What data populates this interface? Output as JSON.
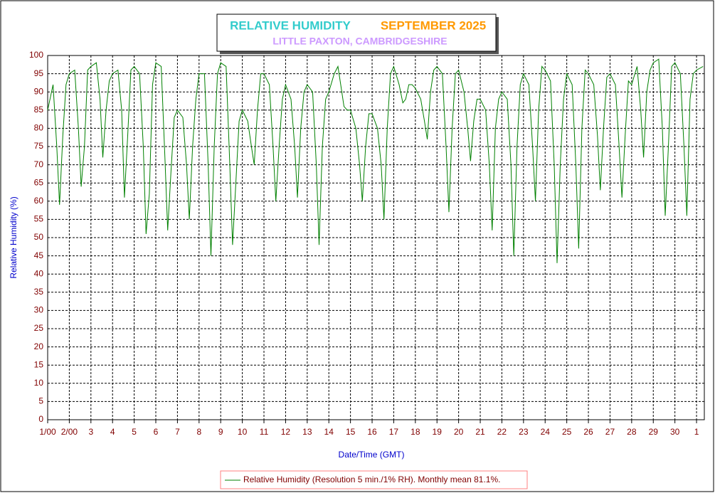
{
  "chart_data": {
    "type": "line",
    "title": "RELATIVE HUMIDITY",
    "title_period": "SEPTEMBER 2025",
    "subtitle": "LITTLE PAXTON, CAMBRIDGESHIRE",
    "x_label": "Date/Time (GMT)",
    "y_label": "Relative Humidity (%)",
    "x": [
      0,
      0.25,
      0.42,
      0.55,
      0.7,
      0.85,
      1,
      1.25,
      1.42,
      1.55,
      1.7,
      1.85,
      2,
      2.25,
      2.42,
      2.55,
      2.7,
      2.85,
      3,
      3.25,
      3.42,
      3.55,
      3.7,
      3.85,
      4,
      4.25,
      4.42,
      4.55,
      4.7,
      4.85,
      5,
      5.25,
      5.42,
      5.55,
      5.7,
      5.85,
      6,
      6.25,
      6.42,
      6.55,
      6.7,
      6.85,
      7,
      7.25,
      7.42,
      7.55,
      7.7,
      7.85,
      8,
      8.25,
      8.42,
      8.55,
      8.7,
      8.85,
      9,
      9.25,
      9.42,
      9.55,
      9.7,
      9.85,
      10,
      10.25,
      10.42,
      10.55,
      10.7,
      10.85,
      11,
      11.25,
      11.42,
      11.55,
      11.7,
      11.85,
      12,
      12.25,
      12.42,
      12.55,
      12.7,
      12.85,
      13,
      13.25,
      13.42,
      13.55,
      13.7,
      13.85,
      14,
      14.25,
      14.42,
      14.55,
      14.7,
      14.85,
      15,
      15.25,
      15.42,
      15.55,
      15.7,
      15.85,
      16,
      16.25,
      16.42,
      16.55,
      16.7,
      16.85,
      17,
      17.25,
      17.42,
      17.55,
      17.7,
      17.85,
      18,
      18.25,
      18.42,
      18.55,
      18.7,
      18.85,
      19,
      19.25,
      19.42,
      19.55,
      19.7,
      19.85,
      20,
      20.25,
      20.42,
      20.55,
      20.7,
      20.85,
      21,
      21.25,
      21.42,
      21.55,
      21.7,
      21.85,
      22,
      22.25,
      22.42,
      22.55,
      22.7,
      22.85,
      23,
      23.25,
      23.42,
      23.55,
      23.7,
      23.85,
      24,
      24.25,
      24.42,
      24.55,
      24.7,
      24.85,
      25,
      25.25,
      25.42,
      25.55,
      25.7,
      25.85,
      26,
      26.25,
      26.42,
      26.55,
      26.7,
      26.85,
      27,
      27.25,
      27.42,
      27.55,
      27.7,
      27.85,
      28,
      28.25,
      28.42,
      28.55,
      28.7,
      28.85,
      29,
      29.25,
      29.42,
      29.55,
      29.7,
      29.85,
      30,
      30.3
    ],
    "series": [
      {
        "name": "Relative Humidity (Resolution 5 min./1% RH). Monthly mean 81.1%.",
        "color": "#008000",
        "values": [
          85,
          92,
          75,
          59,
          78,
          92,
          95,
          96,
          80,
          64,
          75,
          96,
          97,
          98,
          88,
          72,
          85,
          93,
          95,
          96,
          85,
          61,
          78,
          96,
          97,
          95,
          75,
          51,
          62,
          92,
          98,
          97,
          72,
          52,
          68,
          83,
          85,
          83,
          70,
          55,
          75,
          88,
          95,
          95,
          70,
          45,
          75,
          95,
          98,
          97,
          70,
          48,
          65,
          82,
          85,
          82,
          75,
          70,
          85,
          95,
          95,
          92,
          75,
          60,
          75,
          88,
          92,
          88,
          75,
          61,
          80,
          90,
          92,
          90,
          70,
          48,
          75,
          88,
          90,
          95,
          97,
          92,
          86,
          85,
          85,
          80,
          70,
          60,
          75,
          84,
          84,
          80,
          70,
          55,
          80,
          95,
          97,
          92,
          87,
          88,
          92,
          92,
          91,
          88,
          82,
          77,
          90,
          96,
          97,
          95,
          75,
          57,
          80,
          95,
          96,
          90,
          80,
          71,
          82,
          88,
          88,
          85,
          70,
          52,
          80,
          88,
          90,
          88,
          70,
          45,
          75,
          92,
          95,
          92,
          75,
          60,
          85,
          97,
          96,
          93,
          70,
          43,
          70,
          88,
          95,
          92,
          70,
          47,
          80,
          96,
          95,
          92,
          78,
          63,
          80,
          94,
          95,
          92,
          75,
          61,
          78,
          93,
          92,
          97,
          85,
          72,
          90,
          96,
          98,
          99,
          80,
          56,
          75,
          97,
          98,
          95,
          75,
          56,
          88,
          95,
          96,
          97
        ]
      }
    ],
    "xlim": [
      0,
      30.36
    ],
    "xticks": [
      {
        "value": 0,
        "label": "1/00"
      },
      {
        "value": 1,
        "label": "2/00"
      },
      {
        "value": 2,
        "label": "3"
      },
      {
        "value": 3,
        "label": "4"
      },
      {
        "value": 4,
        "label": "5"
      },
      {
        "value": 5,
        "label": "6"
      },
      {
        "value": 6,
        "label": "7"
      },
      {
        "value": 7,
        "label": "8"
      },
      {
        "value": 8,
        "label": "9"
      },
      {
        "value": 9,
        "label": "10"
      },
      {
        "value": 10,
        "label": "11"
      },
      {
        "value": 11,
        "label": "12"
      },
      {
        "value": 12,
        "label": "13"
      },
      {
        "value": 13,
        "label": "14"
      },
      {
        "value": 14,
        "label": "15"
      },
      {
        "value": 15,
        "label": "16"
      },
      {
        "value": 16,
        "label": "17"
      },
      {
        "value": 17,
        "label": "18"
      },
      {
        "value": 18,
        "label": "19"
      },
      {
        "value": 19,
        "label": "20"
      },
      {
        "value": 20,
        "label": "21"
      },
      {
        "value": 21,
        "label": "22"
      },
      {
        "value": 22,
        "label": "23"
      },
      {
        "value": 23,
        "label": "24"
      },
      {
        "value": 24,
        "label": "25"
      },
      {
        "value": 25,
        "label": "26"
      },
      {
        "value": 26,
        "label": "27"
      },
      {
        "value": 27,
        "label": "28"
      },
      {
        "value": 28,
        "label": "29"
      },
      {
        "value": 29,
        "label": "30"
      },
      {
        "value": 30,
        "label": "1"
      }
    ],
    "ylim": [
      0,
      100
    ],
    "yticks": [
      0,
      5,
      10,
      15,
      20,
      25,
      30,
      35,
      40,
      45,
      50,
      55,
      60,
      65,
      70,
      75,
      80,
      85,
      90,
      95,
      100
    ],
    "grid": true
  }
}
